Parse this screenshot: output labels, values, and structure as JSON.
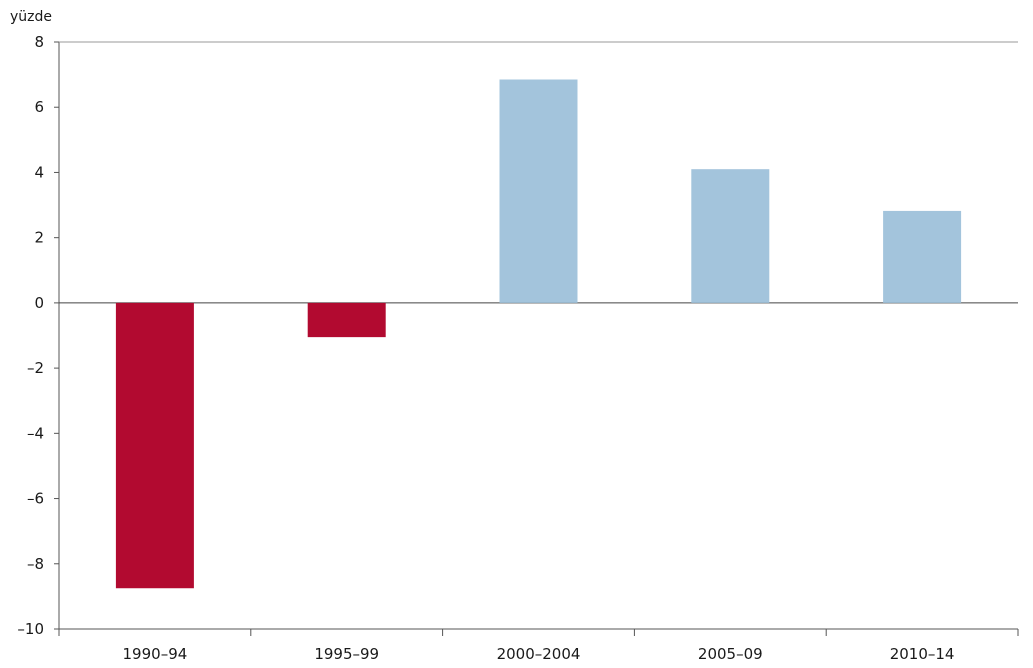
{
  "chart_data": {
    "type": "bar",
    "title": "",
    "xlabel": "",
    "ylabel": "yüzde",
    "categories": [
      "1990–94",
      "1995–99",
      "2000–2004",
      "2005–09",
      "2010–14"
    ],
    "values": [
      -8.75,
      -1.05,
      6.85,
      4.1,
      2.82
    ],
    "ylim": [
      -10,
      8
    ],
    "yticks": [
      8,
      6,
      4,
      2,
      0,
      -2,
      -4,
      -6,
      -8,
      -10
    ],
    "ytick_labels": [
      "8",
      "6",
      "4",
      "2",
      "0",
      "–2",
      "–4",
      "–6",
      "–8",
      "–10"
    ],
    "grid": false,
    "legend": "none",
    "colors": {
      "negative": "#b20a30",
      "positive": "#a3c4dc",
      "axis": "#555555",
      "text": "#1a1a1a"
    }
  }
}
